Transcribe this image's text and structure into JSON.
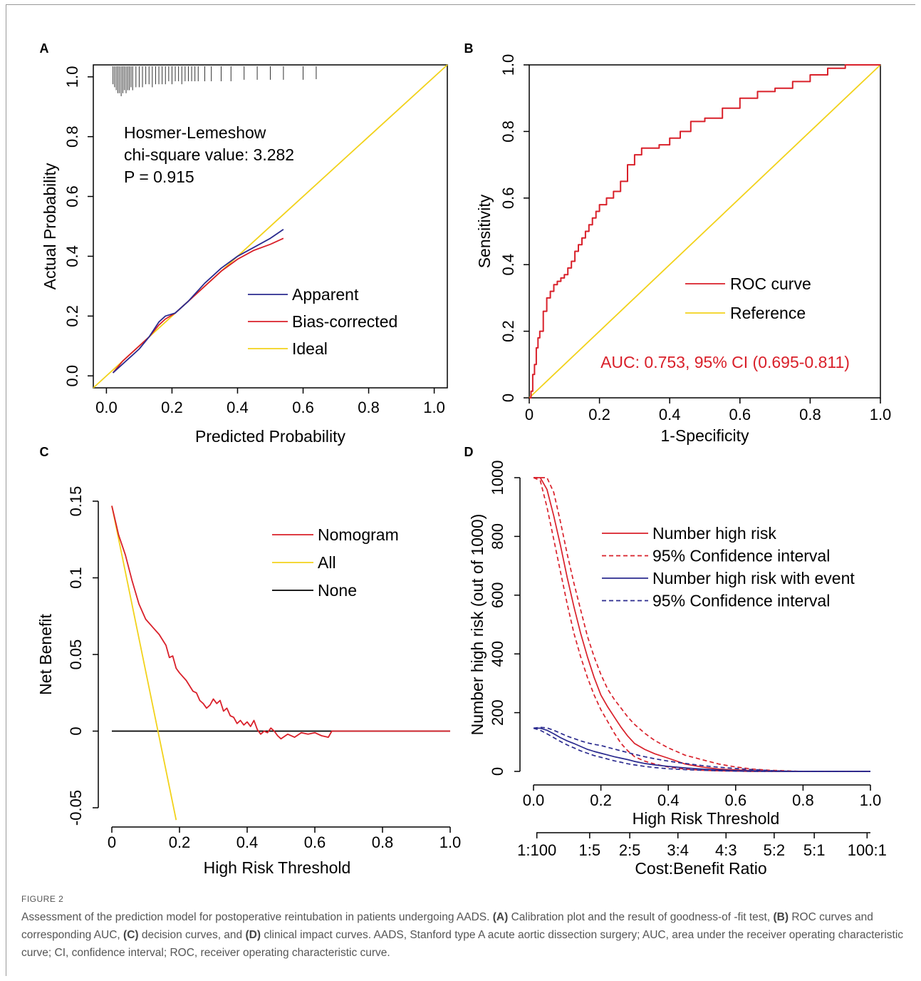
{
  "figure_label": "FIGURE 2",
  "caption": {
    "p1": "Assessment of the prediction model for postoperative reintubation in patients undergoing AADS. ",
    "A": "(A)",
    "p2": " Calibration plot and the result of goodness-of -fit test, ",
    "B": "(B)",
    "p3": " ROC curves and corresponding AUC, ",
    "C": "(C)",
    "p4": " decision curves, and ",
    "D": "(D)",
    "p5": " clinical impact curves. AADS, Stanford type A acute aortic dissection surgery; AUC, area under the receiver operating characteristic curve; CI, confidence interval; ROC, receiver operating characteristic curve."
  },
  "panels": {
    "A": {
      "letter": "A",
      "annotation": [
        "Hosmer-Lemeshow",
        "chi-square value: 3.282",
        "P = 0.915"
      ],
      "legend": [
        "Apparent",
        "Bias-corrected",
        "Ideal"
      ]
    },
    "B": {
      "letter": "B",
      "legend": [
        "ROC curve",
        "Reference"
      ],
      "auc_text": "AUC: 0.753, 95% CI (0.695-0.811)"
    },
    "C": {
      "letter": "C",
      "legend": [
        "Nomogram",
        "All",
        "None"
      ]
    },
    "D": {
      "letter": "D",
      "legend": [
        "Number high risk",
        "95% Confidence interval",
        "Number high risk with event",
        "95% Confidence interval"
      ],
      "secondary_axis_label": "Cost:Benefit Ratio",
      "secondary_ticks": [
        "1:100",
        "1:5",
        "2:5",
        "3:4",
        "4:3",
        "5:2",
        "5:1",
        "100:1"
      ],
      "secondary_tick_positions": [
        0.0099,
        0.1667,
        0.2857,
        0.4286,
        0.5714,
        0.7143,
        0.8333,
        0.9901
      ]
    }
  },
  "colors": {
    "red": "#d9202a",
    "navy": "#2b2b8f",
    "yellow": "#f2d21b",
    "black": "#000000"
  },
  "chart_data": [
    {
      "type": "line",
      "panel": "A",
      "xlabel": "Predicted Probability",
      "ylabel": "Actual Probability",
      "xlim": [
        0,
        1.0
      ],
      "ylim": [
        0,
        1.0
      ],
      "xticks": [
        "0.0",
        "0.2",
        "0.4",
        "0.6",
        "0.8",
        "1.0"
      ],
      "yticks": [
        "0.0",
        "0.2",
        "0.4",
        "0.6",
        "0.8",
        "1.0"
      ],
      "series": [
        {
          "name": "Apparent",
          "color": "#2b2b8f",
          "x": [
            0.02,
            0.05,
            0.08,
            0.1,
            0.13,
            0.16,
            0.18,
            0.21,
            0.25,
            0.3,
            0.35,
            0.4,
            0.45,
            0.5,
            0.54
          ],
          "y": [
            0.01,
            0.04,
            0.07,
            0.09,
            0.13,
            0.18,
            0.2,
            0.21,
            0.25,
            0.31,
            0.36,
            0.4,
            0.43,
            0.46,
            0.49
          ]
        },
        {
          "name": "Bias-corrected",
          "color": "#d9202a",
          "x": [
            0.02,
            0.05,
            0.08,
            0.1,
            0.13,
            0.16,
            0.18,
            0.21,
            0.25,
            0.3,
            0.35,
            0.4,
            0.45,
            0.5,
            0.54
          ],
          "y": [
            0.01,
            0.05,
            0.08,
            0.1,
            0.13,
            0.17,
            0.19,
            0.21,
            0.25,
            0.3,
            0.35,
            0.39,
            0.42,
            0.44,
            0.46
          ]
        },
        {
          "name": "Ideal",
          "color": "#f2d21b",
          "x": [
            -0.05,
            1.05
          ],
          "y": [
            -0.05,
            1.05
          ]
        }
      ],
      "rug_x": [
        0.02,
        0.025,
        0.03,
        0.035,
        0.04,
        0.045,
        0.05,
        0.055,
        0.06,
        0.065,
        0.07,
        0.075,
        0.08,
        0.09,
        0.1,
        0.11,
        0.12,
        0.13,
        0.14,
        0.15,
        0.16,
        0.17,
        0.18,
        0.19,
        0.2,
        0.21,
        0.22,
        0.23,
        0.24,
        0.25,
        0.26,
        0.27,
        0.28,
        0.3,
        0.32,
        0.35,
        0.38,
        0.42,
        0.46,
        0.5,
        0.54,
        0.6,
        0.64
      ],
      "rug_h": [
        0.02,
        0.03,
        0.04,
        0.05,
        0.05,
        0.06,
        0.05,
        0.04,
        0.05,
        0.04,
        0.04,
        0.03,
        0.04,
        0.03,
        0.03,
        0.03,
        0.02,
        0.02,
        0.03,
        0.02,
        0.02,
        0.02,
        0.02,
        0.01,
        0.02,
        0.01,
        0.01,
        0.02,
        0.01,
        0.01,
        0.01,
        0.01,
        0.01,
        0.01,
        0.01,
        0.01,
        0.01,
        0.005,
        0.005,
        0.005,
        0.005,
        0.005,
        0.003
      ]
    },
    {
      "type": "line",
      "panel": "B",
      "xlabel": "1-Specificity",
      "ylabel": "Sensitivity",
      "xlim": [
        0,
        1.0
      ],
      "ylim": [
        0,
        1.0
      ],
      "xticks": [
        "0",
        "0.2",
        "0.4",
        "0.6",
        "0.8",
        "1.0"
      ],
      "yticks": [
        "0",
        "0.2",
        "0.4",
        "0.6",
        "0.8",
        "1.0"
      ],
      "series": [
        {
          "name": "ROC curve",
          "color": "#d9202a",
          "x": [
            0.0,
            0.005,
            0.01,
            0.015,
            0.02,
            0.025,
            0.03,
            0.04,
            0.05,
            0.06,
            0.07,
            0.08,
            0.09,
            0.1,
            0.11,
            0.12,
            0.13,
            0.14,
            0.15,
            0.16,
            0.17,
            0.18,
            0.19,
            0.2,
            0.22,
            0.24,
            0.26,
            0.28,
            0.3,
            0.32,
            0.34,
            0.37,
            0.4,
            0.43,
            0.46,
            0.5,
            0.55,
            0.6,
            0.65,
            0.7,
            0.75,
            0.8,
            0.85,
            0.9,
            1.0
          ],
          "y": [
            0.0,
            0.02,
            0.07,
            0.1,
            0.15,
            0.18,
            0.2,
            0.26,
            0.3,
            0.32,
            0.34,
            0.35,
            0.36,
            0.37,
            0.39,
            0.41,
            0.44,
            0.46,
            0.48,
            0.5,
            0.52,
            0.54,
            0.56,
            0.58,
            0.6,
            0.62,
            0.65,
            0.7,
            0.73,
            0.75,
            0.75,
            0.76,
            0.78,
            0.8,
            0.83,
            0.84,
            0.87,
            0.9,
            0.92,
            0.93,
            0.95,
            0.97,
            0.99,
            1.0,
            1.0
          ]
        },
        {
          "name": "Reference",
          "color": "#f2d21b",
          "x": [
            0,
            1
          ],
          "y": [
            0,
            1
          ]
        }
      ]
    },
    {
      "type": "line",
      "panel": "C",
      "xlabel": "High Risk Threshold",
      "ylabel": "Net Benefit",
      "xlim": [
        0,
        1.0
      ],
      "ylim": [
        -0.05,
        0.15
      ],
      "xticks": [
        "0",
        "0.2",
        "0.4",
        "0.6",
        "0.8",
        "1.0"
      ],
      "yticks": [
        "-0.05",
        "0",
        "0.05",
        "0.1",
        "0.15"
      ],
      "series": [
        {
          "name": "Nomogram",
          "color": "#d9202a",
          "x": [
            0.0,
            0.02,
            0.04,
            0.06,
            0.08,
            0.1,
            0.12,
            0.14,
            0.16,
            0.17,
            0.18,
            0.19,
            0.2,
            0.22,
            0.24,
            0.25,
            0.26,
            0.27,
            0.28,
            0.29,
            0.3,
            0.31,
            0.32,
            0.33,
            0.34,
            0.35,
            0.36,
            0.37,
            0.38,
            0.39,
            0.4,
            0.41,
            0.42,
            0.43,
            0.44,
            0.45,
            0.46,
            0.47,
            0.48,
            0.49,
            0.5,
            0.52,
            0.54,
            0.56,
            0.58,
            0.6,
            0.62,
            0.64,
            0.65,
            1.0
          ],
          "y": [
            0.147,
            0.128,
            0.115,
            0.098,
            0.083,
            0.073,
            0.068,
            0.063,
            0.056,
            0.048,
            0.049,
            0.041,
            0.038,
            0.033,
            0.026,
            0.025,
            0.02,
            0.018,
            0.015,
            0.017,
            0.021,
            0.018,
            0.02,
            0.013,
            0.015,
            0.01,
            0.009,
            0.005,
            0.007,
            0.004,
            0.006,
            0.003,
            0.007,
            0.001,
            -0.002,
            0.0,
            -0.001,
            0.002,
            0.0,
            -0.003,
            -0.005,
            -0.002,
            -0.004,
            -0.001,
            -0.002,
            -0.001,
            -0.003,
            -0.004,
            0.0,
            0.0
          ]
        },
        {
          "name": "All",
          "color": "#f2d21b",
          "x": [
            0.0,
            0.19
          ],
          "y": [
            0.147,
            -0.058
          ]
        },
        {
          "name": "None",
          "color": "#000000",
          "x": [
            0.0,
            1.0
          ],
          "y": [
            0.0,
            0.0
          ]
        }
      ]
    },
    {
      "type": "line",
      "panel": "D",
      "xlabel": "High Risk Threshold",
      "ylabel": "Number high risk (out of 1000)",
      "xlim": [
        0,
        1.0
      ],
      "ylim": [
        0,
        1000
      ],
      "xticks": [
        "0.0",
        "0.2",
        "0.4",
        "0.6",
        "0.8",
        "1.0"
      ],
      "yticks": [
        "0",
        "200",
        "400",
        "600",
        "800",
        "1000"
      ],
      "x": [
        0.0,
        0.02,
        0.04,
        0.06,
        0.08,
        0.1,
        0.12,
        0.14,
        0.16,
        0.18,
        0.2,
        0.22,
        0.24,
        0.26,
        0.28,
        0.3,
        0.33,
        0.36,
        0.4,
        0.45,
        0.5,
        0.55,
        0.6,
        0.65,
        0.7,
        0.75,
        0.8,
        1.0
      ],
      "series": [
        {
          "name": "Number high risk",
          "color": "#d9202a",
          "dash": false,
          "y": [
            1000,
            1000,
            960,
            870,
            770,
            660,
            560,
            470,
            390,
            320,
            260,
            220,
            185,
            150,
            120,
            95,
            75,
            60,
            45,
            25,
            15,
            8,
            5,
            3,
            1,
            0,
            0,
            0
          ]
        },
        {
          "name": "95% Confidence interval",
          "color": "#d9202a",
          "dash": true,
          "y": [
            1000,
            990,
            900,
            790,
            680,
            570,
            470,
            390,
            320,
            260,
            210,
            170,
            130,
            95,
            70,
            50,
            35,
            25,
            15,
            8,
            4,
            2,
            1,
            0,
            0,
            0,
            0,
            0
          ]
        },
        {
          "name": "95% Confidence interval",
          "color": "#d9202a",
          "dash": true,
          "y": [
            1000,
            1000,
            1000,
            950,
            850,
            740,
            640,
            550,
            460,
            390,
            330,
            280,
            245,
            215,
            185,
            160,
            130,
            105,
            80,
            55,
            40,
            25,
            15,
            8,
            4,
            2,
            0,
            0
          ]
        },
        {
          "name": "Number high risk with event",
          "color": "#2b2b8f",
          "dash": false,
          "y": [
            147,
            147,
            140,
            128,
            115,
            104,
            95,
            85,
            75,
            68,
            62,
            56,
            50,
            45,
            40,
            34,
            27,
            22,
            17,
            12,
            8,
            5,
            3,
            2,
            1,
            0,
            0,
            0
          ]
        },
        {
          "name": "95% Confidence interval",
          "color": "#2b2b8f",
          "dash": true,
          "y": [
            147,
            140,
            128,
            115,
            102,
            90,
            80,
            70,
            62,
            54,
            48,
            42,
            36,
            31,
            26,
            22,
            17,
            13,
            9,
            6,
            4,
            2,
            1,
            0,
            0,
            0,
            0,
            0
          ]
        },
        {
          "name": "95% Confidence interval",
          "color": "#2b2b8f",
          "dash": true,
          "y": [
            147,
            150,
            148,
            140,
            130,
            120,
            112,
            104,
            97,
            92,
            88,
            82,
            76,
            70,
            64,
            58,
            50,
            43,
            35,
            27,
            20,
            14,
            10,
            6,
            3,
            1,
            0,
            0
          ]
        }
      ]
    }
  ]
}
